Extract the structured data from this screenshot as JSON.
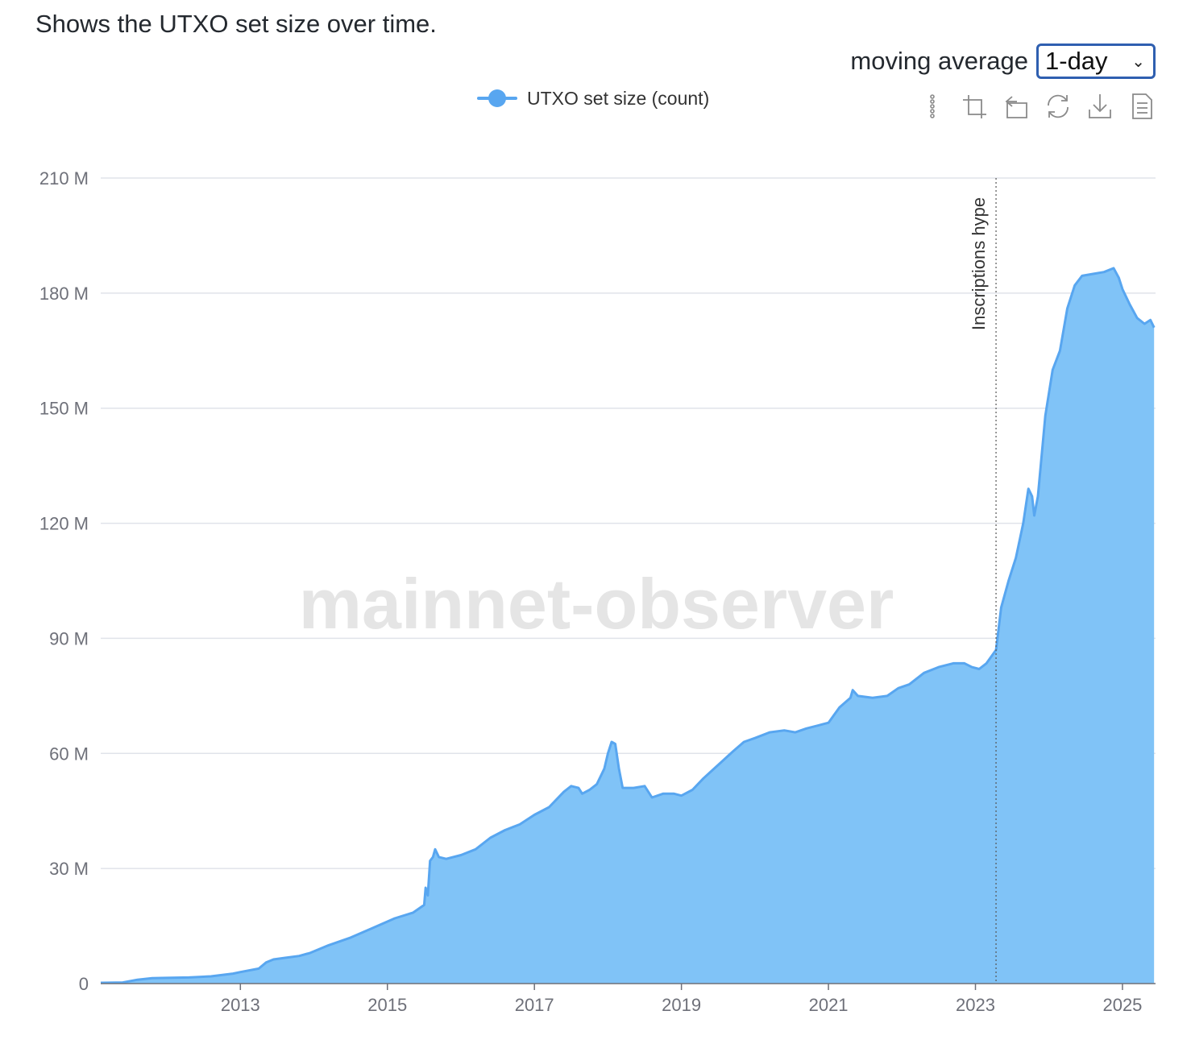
{
  "description": "Shows the UTXO set size over time.",
  "moving_average": {
    "label": "moving average",
    "selected": "1-day"
  },
  "legend": {
    "label": "UTXO set size (count)"
  },
  "toolbox": [
    {
      "name": "data-zoom-icon"
    },
    {
      "name": "zoom-area-icon"
    },
    {
      "name": "zoom-reset-icon"
    },
    {
      "name": "restore-icon"
    },
    {
      "name": "download-icon"
    },
    {
      "name": "data-view-icon"
    }
  ],
  "watermark": "mainnet-observer",
  "colors": {
    "series": "#58a6f0",
    "area": "#80c3f7",
    "grid": "#e0e3ea",
    "axis": "#6e7079"
  },
  "chart_data": {
    "type": "area",
    "grid": true,
    "legend_position": "top-center",
    "y_ticks": [
      "0",
      "30 M",
      "60 M",
      "90 M",
      "120 M",
      "150 M",
      "180 M",
      "210 M"
    ],
    "ylim": [
      0,
      210
    ],
    "y_unit": "M",
    "x_ticks": [
      "2013",
      "2015",
      "2017",
      "2019",
      "2021",
      "2023",
      "2025"
    ],
    "xlim": [
      2011.1,
      2025.45
    ],
    "mark_line": {
      "label": "Inscriptions hype",
      "x": 2023.28
    },
    "series": [
      {
        "name": "UTXO set size (count)",
        "points": [
          [
            2011.1,
            0.2
          ],
          [
            2011.4,
            0.3
          ],
          [
            2011.6,
            1.0
          ],
          [
            2011.8,
            1.4
          ],
          [
            2012.0,
            1.5
          ],
          [
            2012.3,
            1.6
          ],
          [
            2012.6,
            1.9
          ],
          [
            2012.9,
            2.6
          ],
          [
            2013.0,
            3.0
          ],
          [
            2013.25,
            3.9
          ],
          [
            2013.35,
            5.5
          ],
          [
            2013.45,
            6.3
          ],
          [
            2013.6,
            6.7
          ],
          [
            2013.8,
            7.2
          ],
          [
            2013.95,
            8.0
          ],
          [
            2014.2,
            10.0
          ],
          [
            2014.5,
            12.0
          ],
          [
            2014.8,
            14.5
          ],
          [
            2015.1,
            17.0
          ],
          [
            2015.35,
            18.5
          ],
          [
            2015.5,
            20.5
          ],
          [
            2015.52,
            25.0
          ],
          [
            2015.55,
            23.0
          ],
          [
            2015.58,
            32.0
          ],
          [
            2015.62,
            33.0
          ],
          [
            2015.65,
            35.0
          ],
          [
            2015.7,
            33.0
          ],
          [
            2015.8,
            32.5
          ],
          [
            2016.0,
            33.5
          ],
          [
            2016.2,
            35.0
          ],
          [
            2016.4,
            38.0
          ],
          [
            2016.6,
            40.0
          ],
          [
            2016.8,
            41.5
          ],
          [
            2017.0,
            44.0
          ],
          [
            2017.2,
            46.0
          ],
          [
            2017.4,
            50.0
          ],
          [
            2017.5,
            51.5
          ],
          [
            2017.6,
            51.0
          ],
          [
            2017.65,
            49.5
          ],
          [
            2017.75,
            50.5
          ],
          [
            2017.85,
            52.0
          ],
          [
            2017.95,
            56.0
          ],
          [
            2018.0,
            60.0
          ],
          [
            2018.05,
            63.0
          ],
          [
            2018.1,
            62.5
          ],
          [
            2018.15,
            56.0
          ],
          [
            2018.2,
            51.0
          ],
          [
            2018.35,
            51.0
          ],
          [
            2018.5,
            51.5
          ],
          [
            2018.6,
            48.5
          ],
          [
            2018.75,
            49.5
          ],
          [
            2018.9,
            49.5
          ],
          [
            2019.0,
            49.0
          ],
          [
            2019.15,
            50.5
          ],
          [
            2019.3,
            53.5
          ],
          [
            2019.5,
            57.0
          ],
          [
            2019.7,
            60.5
          ],
          [
            2019.85,
            63.0
          ],
          [
            2020.0,
            64.0
          ],
          [
            2020.2,
            65.5
          ],
          [
            2020.4,
            66.0
          ],
          [
            2020.55,
            65.5
          ],
          [
            2020.7,
            66.5
          ],
          [
            2020.9,
            67.5
          ],
          [
            2021.0,
            68.0
          ],
          [
            2021.15,
            72.0
          ],
          [
            2021.3,
            74.5
          ],
          [
            2021.33,
            76.5
          ],
          [
            2021.4,
            75.0
          ],
          [
            2021.6,
            74.5
          ],
          [
            2021.8,
            75.0
          ],
          [
            2021.95,
            77.0
          ],
          [
            2022.1,
            78.0
          ],
          [
            2022.3,
            81.0
          ],
          [
            2022.5,
            82.5
          ],
          [
            2022.7,
            83.5
          ],
          [
            2022.85,
            83.5
          ],
          [
            2022.95,
            82.5
          ],
          [
            2023.05,
            82.0
          ],
          [
            2023.15,
            83.5
          ],
          [
            2023.28,
            87.0
          ],
          [
            2023.35,
            98.0
          ],
          [
            2023.45,
            105.0
          ],
          [
            2023.55,
            111.0
          ],
          [
            2023.65,
            120.0
          ],
          [
            2023.72,
            129.0
          ],
          [
            2023.77,
            127.0
          ],
          [
            2023.8,
            122.0
          ],
          [
            2023.85,
            127.0
          ],
          [
            2023.95,
            148.0
          ],
          [
            2024.05,
            160.0
          ],
          [
            2024.15,
            165.0
          ],
          [
            2024.25,
            176.0
          ],
          [
            2024.35,
            182.0
          ],
          [
            2024.45,
            184.5
          ],
          [
            2024.6,
            185.0
          ],
          [
            2024.75,
            185.5
          ],
          [
            2024.88,
            186.5
          ],
          [
            2024.95,
            184.0
          ],
          [
            2025.0,
            181.0
          ],
          [
            2025.1,
            177.0
          ],
          [
            2025.2,
            173.5
          ],
          [
            2025.3,
            172.0
          ],
          [
            2025.38,
            173.0
          ],
          [
            2025.43,
            171.0
          ]
        ]
      }
    ]
  }
}
